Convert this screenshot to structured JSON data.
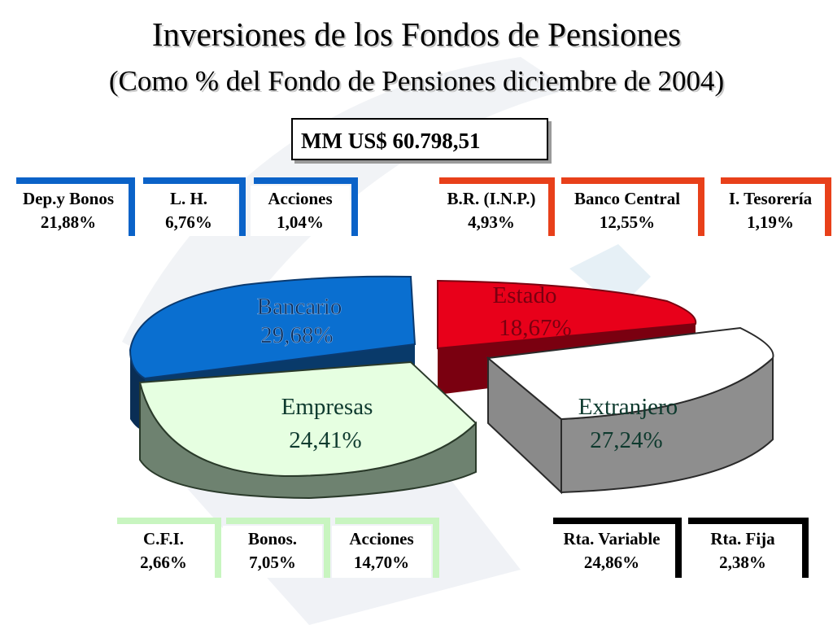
{
  "title": "Inversiones de los Fondos de Pensiones",
  "subtitle": "(Como % del Fondo de Pensiones diciembre de 2004)",
  "total_label": "MM US$ 60.798,51",
  "colors": {
    "bancario": "#0a6fd0",
    "estado": "#e8001a",
    "empresas": "#e6ffe1",
    "extranjero": "#ffffff",
    "blue_frame": "#0a62c8",
    "red_frame": "#e8401a",
    "green_frame": "#c8f5c0",
    "black_frame": "#000000"
  },
  "top_boxes": [
    {
      "name": "Dep.y Bonos",
      "value": "21,88%",
      "group": "Bancario"
    },
    {
      "name": "L. H.",
      "value": "6,76%",
      "group": "Bancario"
    },
    {
      "name": "Acciones",
      "value": "1,04%",
      "group": "Bancario"
    },
    {
      "name": "B.R. (I.N.P.)",
      "value": "4,93%",
      "group": "Estado"
    },
    {
      "name": "Banco Central",
      "value": "12,55%",
      "group": "Estado"
    },
    {
      "name": "I. Tesorería",
      "value": "1,19%",
      "group": "Estado"
    }
  ],
  "bottom_boxes": [
    {
      "name": "C.F.I.",
      "value": "2,66%",
      "group": "Empresas"
    },
    {
      "name": "Bonos.",
      "value": "7,05%",
      "group": "Empresas"
    },
    {
      "name": "Acciones",
      "value": "14,70%",
      "group": "Empresas"
    },
    {
      "name": "Rta. Variable",
      "value": "24,86%",
      "group": "Extranjero"
    },
    {
      "name": "Rta. Fija",
      "value": "2,38%",
      "group": "Extranjero"
    }
  ],
  "chart_data": {
    "type": "pie",
    "title": "Inversiones de los Fondos de Pensiones",
    "subtitle": "(Como % del Fondo de Pensiones diciembre de 2004)",
    "slices": [
      {
        "label": "Bancario",
        "value": 29.68,
        "display": "29,68%"
      },
      {
        "label": "Estado",
        "value": 18.67,
        "display": "18,67%"
      },
      {
        "label": "Extranjero",
        "value": 27.24,
        "display": "27,24%"
      },
      {
        "label": "Empresas",
        "value": 24.41,
        "display": "24,41%"
      }
    ],
    "breakdown": {
      "Bancario": [
        {
          "label": "Dep.y Bonos",
          "value": 21.88
        },
        {
          "label": "L. H.",
          "value": 6.76
        },
        {
          "label": "Acciones",
          "value": 1.04
        }
      ],
      "Estado": [
        {
          "label": "B.R. (I.N.P.)",
          "value": 4.93
        },
        {
          "label": "Banco Central",
          "value": 12.55
        },
        {
          "label": "I. Tesorería",
          "value": 1.19
        }
      ],
      "Empresas": [
        {
          "label": "C.F.I.",
          "value": 2.66
        },
        {
          "label": "Bonos.",
          "value": 7.05
        },
        {
          "label": "Acciones",
          "value": 14.7
        }
      ],
      "Extranjero": [
        {
          "label": "Rta. Variable",
          "value": 24.86
        },
        {
          "label": "Rta. Fija",
          "value": 2.38
        }
      ]
    },
    "total": "MM US$ 60.798,51"
  }
}
